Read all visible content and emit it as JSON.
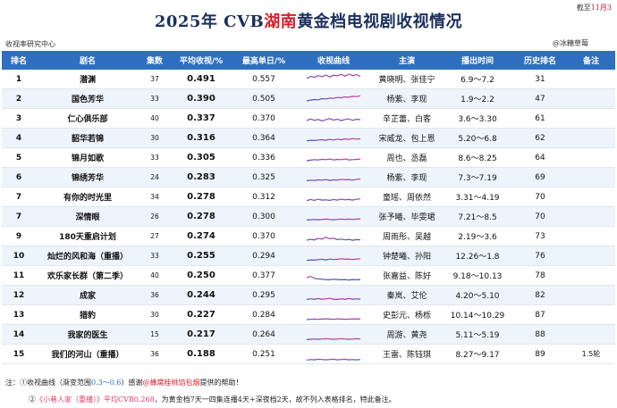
{
  "header": {
    "corner_prefix": "截至",
    "corner_date": "11月3",
    "title_prefix": "2025年 CVB",
    "title_highlight": "湖南",
    "title_suffix": "黄金档电视剧收视情况",
    "source": "收视率研究中心",
    "watermark": "@冰糖草莓"
  },
  "columns": [
    "排名",
    "剧名",
    "集数",
    "平均收视/%",
    "最高单日/%",
    "收视曲线",
    "主演",
    "播出时间",
    "历史排名",
    "备注"
  ],
  "rows": [
    {
      "rank": "1",
      "name": "潜渊",
      "eps": "37",
      "avg": "0.491",
      "peak": "0.557",
      "cast": "黄晓明、张佳宁",
      "dates": "6.9～7.2",
      "hist": "31",
      "note": "",
      "curve": [
        0.4,
        0.47,
        0.44,
        0.5,
        0.46,
        0.52,
        0.45,
        0.51,
        0.49,
        0.54,
        0.48,
        0.55,
        0.5,
        0.53,
        0.47
      ]
    },
    {
      "rank": "2",
      "name": "国色芳华",
      "eps": "33",
      "avg": "0.390",
      "peak": "0.505",
      "cast": "杨紫、李现",
      "dates": "1.9～2.2",
      "hist": "47",
      "note": "",
      "curve": [
        0.3,
        0.33,
        0.35,
        0.34,
        0.38,
        0.37,
        0.4,
        0.39,
        0.42,
        0.41,
        0.44,
        0.43,
        0.46,
        0.45,
        0.48
      ]
    },
    {
      "rank": "3",
      "name": "仁心俱乐部",
      "eps": "40",
      "avg": "0.337",
      "peak": "0.370",
      "cast": "辛芷蕾、白客",
      "dates": "3.6～3.30",
      "hist": "61",
      "note": "",
      "curve": [
        0.3,
        0.36,
        0.31,
        0.34,
        0.29,
        0.33,
        0.37,
        0.32,
        0.35,
        0.3,
        0.34,
        0.36,
        0.31,
        0.35,
        0.33
      ]
    },
    {
      "rank": "4",
      "name": "韶华若锦",
      "eps": "30",
      "avg": "0.316",
      "peak": "0.364",
      "cast": "宋威龙、包上恩",
      "dates": "5.20～6.8",
      "hist": "62",
      "note": "",
      "curve": [
        0.28,
        0.3,
        0.29,
        0.31,
        0.32,
        0.3,
        0.33,
        0.31,
        0.34,
        0.32,
        0.35,
        0.33,
        0.36,
        0.34,
        0.35
      ]
    },
    {
      "rank": "5",
      "name": "锦月如歌",
      "eps": "33",
      "avg": "0.305",
      "peak": "0.336",
      "cast": "周也、丞磊",
      "dates": "8.6～8.25",
      "hist": "64",
      "note": "",
      "curve": [
        0.27,
        0.29,
        0.31,
        0.3,
        0.32,
        0.31,
        0.33,
        0.3,
        0.32,
        0.31,
        0.33,
        0.3,
        0.31,
        0.32,
        0.33
      ]
    },
    {
      "rank": "6",
      "name": "锦绣芳华",
      "eps": "24",
      "avg": "0.283",
      "peak": "0.325",
      "cast": "杨紫、李现",
      "dates": "7.3～7.19",
      "hist": "69",
      "note": "",
      "curve": [
        0.26,
        0.28,
        0.27,
        0.29,
        0.28,
        0.3,
        0.27,
        0.29,
        0.28,
        0.31,
        0.29,
        0.3,
        0.28,
        0.31,
        0.32
      ]
    },
    {
      "rank": "7",
      "name": "有你的时光里",
      "eps": "34",
      "avg": "0.278",
      "peak": "0.312",
      "cast": "童瑶、周依然",
      "dates": "3.31～4.19",
      "hist": "70",
      "note": "",
      "curve": [
        0.25,
        0.29,
        0.26,
        0.3,
        0.27,
        0.28,
        0.26,
        0.29,
        0.27,
        0.3,
        0.28,
        0.29,
        0.27,
        0.3,
        0.31
      ]
    },
    {
      "rank": "7",
      "name": "深情眼",
      "eps": "26",
      "avg": "0.278",
      "peak": "0.300",
      "cast": "张予曦、毕雯珺",
      "dates": "7.21～8.5",
      "hist": "70",
      "note": "",
      "curve": [
        0.26,
        0.27,
        0.28,
        0.27,
        0.28,
        0.29,
        0.28,
        0.27,
        0.28,
        0.29,
        0.28,
        0.29,
        0.28,
        0.29,
        0.3
      ]
    },
    {
      "rank": "9",
      "name": "180天重启计划",
      "eps": "27",
      "avg": "0.274",
      "peak": "0.370",
      "cast": "周雨彤、吴越",
      "dates": "2.19～3.6",
      "hist": "73",
      "note": "",
      "curve": [
        0.24,
        0.27,
        0.25,
        0.3,
        0.28,
        0.34,
        0.29,
        0.31,
        0.26,
        0.28,
        0.25,
        0.27,
        0.24,
        0.26,
        0.25
      ]
    },
    {
      "rank": "10",
      "name": "灿烂的风和海（重播）",
      "eps": "33",
      "avg": "0.255",
      "peak": "0.294",
      "cast": "钟楚曦、孙阳",
      "dates": "12.26～1.8",
      "hist": "76",
      "note": "",
      "curve": [
        0.22,
        0.24,
        0.23,
        0.25,
        0.26,
        0.24,
        0.27,
        0.25,
        0.26,
        0.28,
        0.26,
        0.27,
        0.25,
        0.27,
        0.28
      ]
    },
    {
      "rank": "11",
      "name": "欢乐家长群（第二季）",
      "eps": "40",
      "avg": "0.250",
      "peak": "0.377",
      "cast": "张嘉益、陈好",
      "dates": "9.18～10.13",
      "hist": "78",
      "note": "",
      "curve": [
        0.3,
        0.35,
        0.28,
        0.26,
        0.25,
        0.24,
        0.23,
        0.25,
        0.24,
        0.23,
        0.24,
        0.22,
        0.24,
        0.23,
        0.24
      ]
    },
    {
      "rank": "12",
      "name": "成家",
      "eps": "36",
      "avg": "0.244",
      "peak": "0.295",
      "cast": "秦岚、艾伦",
      "dates": "4.20～5.10",
      "hist": "82",
      "note": "",
      "curve": [
        0.23,
        0.25,
        0.24,
        0.26,
        0.24,
        0.25,
        0.27,
        0.24,
        0.23,
        0.25,
        0.24,
        0.26,
        0.24,
        0.25,
        0.24
      ]
    },
    {
      "rank": "13",
      "name": "猎豹",
      "eps": "30",
      "avg": "0.227",
      "peak": "0.284",
      "cast": "史彭元、杨栎",
      "dates": "10.14～10.29",
      "hist": "87",
      "note": "",
      "curve": [
        0.21,
        0.22,
        0.23,
        0.22,
        0.23,
        0.24,
        0.23,
        0.22,
        0.24,
        0.23,
        0.22,
        0.23,
        0.24,
        0.23,
        0.24
      ]
    },
    {
      "rank": "14",
      "name": "我家的医生",
      "eps": "15",
      "avg": "0.217",
      "peak": "0.264",
      "cast": "周游、黄尧",
      "dates": "5.11～5.19",
      "hist": "88",
      "note": "",
      "curve": [
        0.2,
        0.21,
        0.22,
        0.21,
        0.22,
        0.23,
        0.22,
        0.21,
        0.22,
        0.23,
        0.22,
        0.21,
        0.22,
        0.23,
        0.22
      ]
    },
    {
      "rank": "15",
      "name": "我们的河山（重播）",
      "eps": "36",
      "avg": "0.188",
      "peak": "0.251",
      "cast": "王雷、陈钰琪",
      "dates": "8.27～9.17",
      "hist": "89",
      "note": "1.5轮",
      "curve": [
        0.17,
        0.19,
        0.18,
        0.2,
        0.19,
        0.18,
        0.19,
        0.2,
        0.18,
        0.19,
        0.2,
        0.18,
        0.19,
        0.18,
        0.19
      ]
    }
  ],
  "curve_range": [
    0.3,
    0.6
  ],
  "notes": {
    "label": "注：",
    "n1_prefix": "①收视曲线（渐变范围",
    "n1_range": "0.3～0.6",
    "n1_mid": "）感谢",
    "n1_credit": "@蜂窝桂桃馅包烟",
    "n1_suffix": "提供的帮助！",
    "n2_prefix": "②",
    "n2_highlight": "《小巷人家（重播）》平均CVB0.268",
    "n2_suffix": "，为黄金档7天一四集连播4天+深夜档2天，故不列入表格排名，特此备注。"
  },
  "colors": {
    "header_bg": "#2f6fc2",
    "title": "#1b2f5c",
    "accent_red": "#d81e2a",
    "curve_low": "#3b53c4",
    "curve_high": "#d63c8f"
  }
}
